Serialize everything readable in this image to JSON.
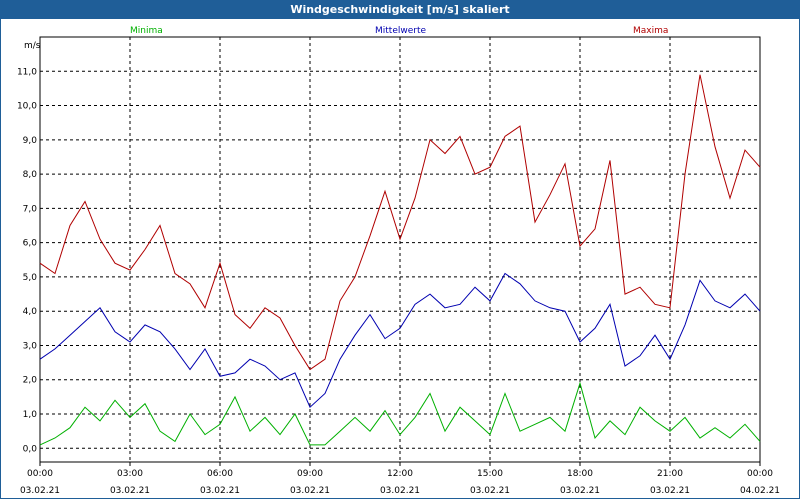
{
  "window": {
    "title": "Windgeschwindigkeit [m/s] skaliert"
  },
  "chart_data": {
    "type": "line",
    "title": "Windgeschwindigkeit [m/s] skaliert",
    "ylabel": "m/s",
    "ylim": [
      -0.4,
      12.0
    ],
    "yticks": [
      "0,0",
      "1,0",
      "2,0",
      "3,0",
      "4,0",
      "5,0",
      "6,0",
      "7,0",
      "8,0",
      "9,0",
      "10,0",
      "11,0"
    ],
    "xlim_hours": [
      0,
      24
    ],
    "xtick_times": [
      "00:00",
      "03:00",
      "06:00",
      "09:00",
      "12:00",
      "15:00",
      "18:00",
      "21:00",
      "00:00"
    ],
    "xtick_dates": [
      "03.02.21",
      "03.02.21",
      "03.02.21",
      "03.02.21",
      "03.02.21",
      "03.02.21",
      "03.02.21",
      "03.02.21",
      "04.02.21"
    ],
    "grid": true,
    "legend_position": "top",
    "series": [
      {
        "name": "Minima",
        "color": "#00b000",
        "x": [
          0,
          0.5,
          1,
          1.5,
          2,
          2.5,
          3,
          3.5,
          4,
          4.5,
          5,
          5.5,
          6,
          6.5,
          7,
          7.5,
          8,
          8.5,
          9,
          9.5,
          10,
          10.5,
          11,
          11.5,
          12,
          12.5,
          13,
          13.5,
          14,
          14.5,
          15,
          15.5,
          16,
          16.5,
          17,
          17.5,
          18,
          18.5,
          19,
          19.5,
          20,
          20.5,
          21,
          21.5,
          22,
          22.5,
          23,
          23.5,
          24
        ],
        "values": [
          0.1,
          0.3,
          0.6,
          1.2,
          0.8,
          1.4,
          0.9,
          1.3,
          0.5,
          0.2,
          1.0,
          0.4,
          0.7,
          1.5,
          0.5,
          0.9,
          0.4,
          1.0,
          0.1,
          0.1,
          0.5,
          0.9,
          0.5,
          1.1,
          0.4,
          0.9,
          1.6,
          0.5,
          1.2,
          0.8,
          0.4,
          1.6,
          0.5,
          0.7,
          0.9,
          0.5,
          1.9,
          0.3,
          0.8,
          0.4,
          1.2,
          0.8,
          0.5,
          0.9,
          0.3,
          0.6,
          0.3,
          0.7,
          0.2
        ]
      },
      {
        "name": "Mittelwerte",
        "color": "#0000b0",
        "x": [
          0,
          0.5,
          1,
          1.5,
          2,
          2.5,
          3,
          3.5,
          4,
          4.5,
          5,
          5.5,
          6,
          6.5,
          7,
          7.5,
          8,
          8.5,
          9,
          9.5,
          10,
          10.5,
          11,
          11.5,
          12,
          12.5,
          13,
          13.5,
          14,
          14.5,
          15,
          15.5,
          16,
          16.5,
          17,
          17.5,
          18,
          18.5,
          19,
          19.5,
          20,
          20.5,
          21,
          21.5,
          22,
          22.5,
          23,
          23.5,
          24
        ],
        "values": [
          2.6,
          2.9,
          3.3,
          3.7,
          4.1,
          3.4,
          3.1,
          3.6,
          3.4,
          2.9,
          2.3,
          2.9,
          2.1,
          2.2,
          2.6,
          2.4,
          2.0,
          2.2,
          1.2,
          1.6,
          2.6,
          3.3,
          3.9,
          3.2,
          3.5,
          4.2,
          4.5,
          4.1,
          4.2,
          4.7,
          4.3,
          5.1,
          4.8,
          4.3,
          4.1,
          4.0,
          3.1,
          3.5,
          4.2,
          2.4,
          2.7,
          3.3,
          2.6,
          3.6,
          4.9,
          4.3,
          4.1,
          4.5,
          4.0
        ]
      },
      {
        "name": "Maxima",
        "color": "#b00000",
        "x": [
          0,
          0.5,
          1,
          1.5,
          2,
          2.5,
          3,
          3.5,
          4,
          4.5,
          5,
          5.5,
          6,
          6.5,
          7,
          7.5,
          8,
          8.5,
          9,
          9.5,
          10,
          10.5,
          11,
          11.5,
          12,
          12.5,
          13,
          13.5,
          14,
          14.5,
          15,
          15.5,
          16,
          16.5,
          17,
          17.5,
          18,
          18.5,
          19,
          19.5,
          20,
          20.5,
          21,
          21.5,
          22,
          22.5,
          23,
          23.5,
          24
        ],
        "values": [
          5.4,
          5.1,
          6.5,
          7.2,
          6.1,
          5.4,
          5.2,
          5.8,
          6.5,
          5.1,
          4.8,
          4.1,
          5.4,
          3.9,
          3.5,
          4.1,
          3.8,
          3.0,
          2.3,
          2.6,
          4.3,
          5.0,
          6.2,
          7.5,
          6.1,
          7.3,
          9.0,
          8.6,
          9.1,
          8.0,
          8.2,
          9.1,
          9.4,
          6.6,
          7.4,
          8.3,
          5.9,
          6.4,
          8.4,
          4.5,
          4.7,
          4.2,
          4.1,
          8.0,
          10.9,
          8.8,
          7.3,
          8.7,
          8.2
        ]
      }
    ]
  }
}
